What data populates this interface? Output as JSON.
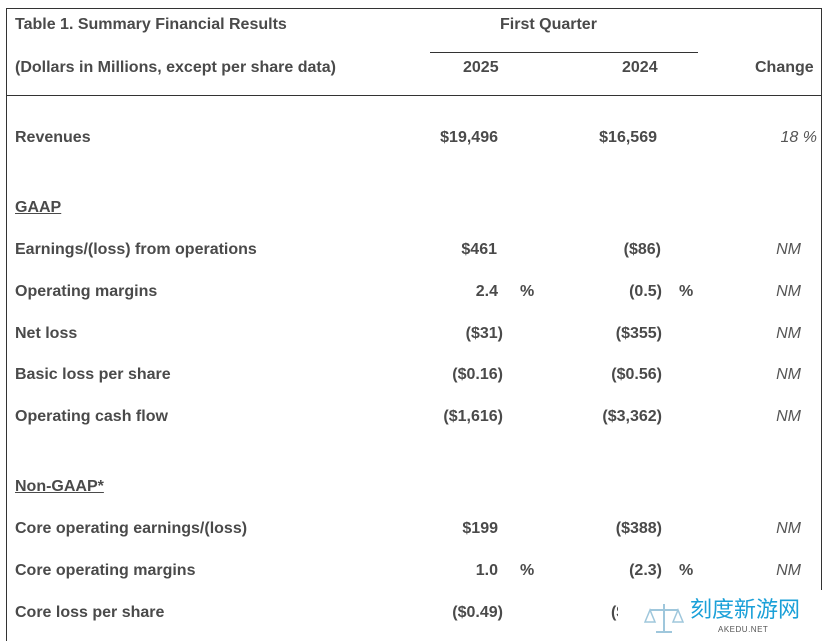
{
  "header": {
    "title": "Table 1. Summary Financial Results",
    "period": "First Quarter",
    "subtitle": "(Dollars in Millions, except per share data)",
    "col_2025": "2025",
    "col_2024": "2024",
    "col_change": "Change"
  },
  "revenues": {
    "label": "Revenues",
    "v2025": "$19,496",
    "v2024": "$16,569",
    "change": "18 %"
  },
  "gaap": {
    "heading": "GAAP",
    "rows": [
      {
        "label": "Earnings/(loss) from operations",
        "v2025": "$461",
        "p2025": "",
        "v2024": "($86)",
        "p2024": "",
        "change": "NM"
      },
      {
        "label": "Operating margins",
        "v2025": "2.4",
        "p2025": "%",
        "v2024": "(0.5)",
        "p2024": "%",
        "change": "NM"
      },
      {
        "label": "Net loss",
        "v2025": "($31)",
        "p2025": "",
        "v2024": "($355)",
        "p2024": "",
        "change": "NM"
      },
      {
        "label": "Basic loss per share",
        "v2025": "($0.16)",
        "p2025": "",
        "v2024": "($0.56)",
        "p2024": "",
        "change": "NM"
      },
      {
        "label": "Operating cash flow",
        "v2025": "($1,616)",
        "p2025": "",
        "v2024": "($3,362)",
        "p2024": "",
        "change": "NM"
      }
    ]
  },
  "nongaap": {
    "heading": "Non-GAAP*",
    "rows": [
      {
        "label": "Core operating earnings/(loss)",
        "v2025": "$199",
        "p2025": "",
        "v2024": "($388)",
        "p2024": "",
        "change": "NM"
      },
      {
        "label": "Core operating margins",
        "v2025": "1.0",
        "p2025": "%",
        "v2024": "(2.3)",
        "p2024": "%",
        "change": "NM"
      },
      {
        "label": "Core loss per share",
        "v2025": "($0.49)",
        "p2025": "",
        "v2024": "($",
        "p2024": "",
        "change": ""
      }
    ]
  },
  "watermark": {
    "text": "刻度新游网",
    "sub": "AKEDU.NET"
  }
}
